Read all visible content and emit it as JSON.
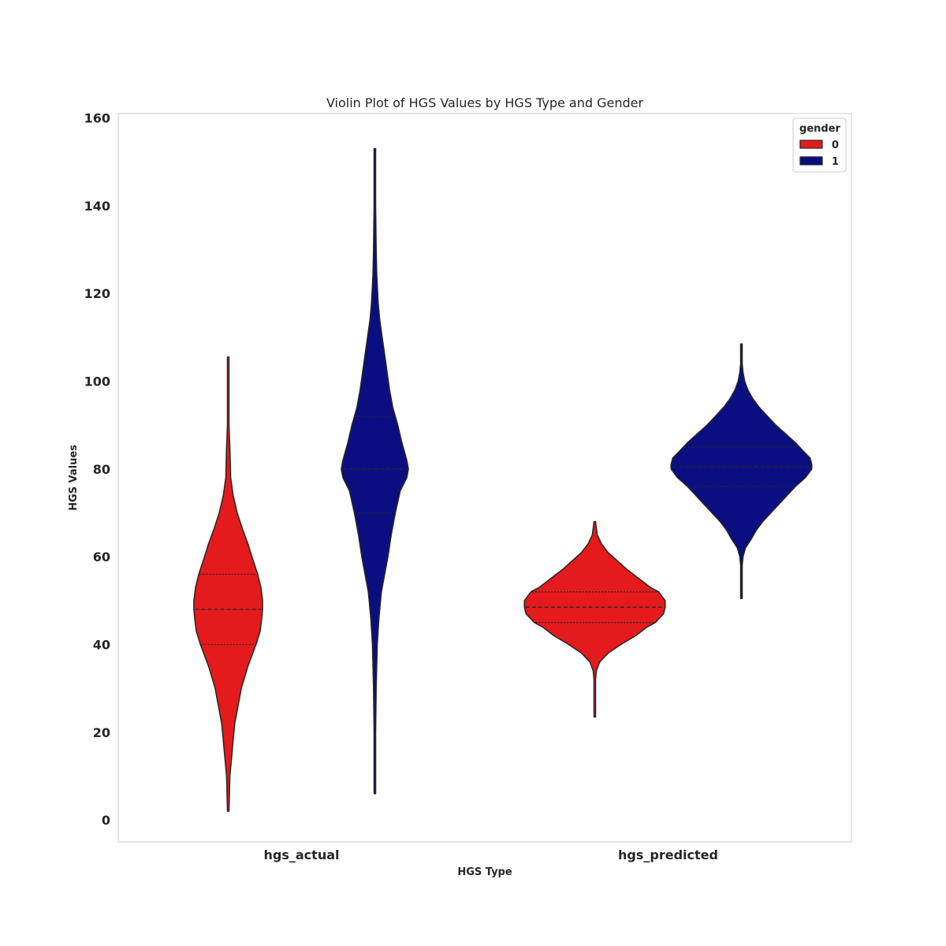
{
  "chart_data": {
    "type": "violin",
    "title": "Violin Plot of HGS Values by HGS Type and Gender",
    "xlabel": "HGS Type",
    "ylabel": "HGS Values",
    "categories": [
      "hgs_actual",
      "hgs_predicted"
    ],
    "ylim": [
      -5,
      161
    ],
    "yticks": [
      "0",
      "20",
      "40",
      "60",
      "80",
      "100",
      "120",
      "140",
      "160"
    ],
    "grid": false,
    "legend": {
      "title": "gender",
      "placement": "top-right"
    },
    "series": [
      {
        "name": "0",
        "color": "#e41a1c"
      },
      {
        "name": "1",
        "color": "#0b0e80"
      }
    ],
    "violins": [
      {
        "category": "hgs_actual",
        "series": "0",
        "min": 2,
        "max": 105.5,
        "q1": 40,
        "median": 48,
        "q3": 56,
        "profile": [
          [
            2,
            0.5
          ],
          [
            10,
            1
          ],
          [
            14,
            2
          ],
          [
            18,
            3
          ],
          [
            22,
            4
          ],
          [
            26,
            6
          ],
          [
            30,
            8
          ],
          [
            35,
            12
          ],
          [
            40,
            17
          ],
          [
            43,
            19.5
          ],
          [
            46,
            20.5
          ],
          [
            48,
            21
          ],
          [
            50,
            21
          ],
          [
            53,
            20
          ],
          [
            56,
            18
          ],
          [
            60,
            14.5
          ],
          [
            63,
            12
          ],
          [
            66,
            9
          ],
          [
            70,
            5.5
          ],
          [
            74,
            3
          ],
          [
            78,
            1.5
          ],
          [
            85,
            1
          ],
          [
            90,
            0.5
          ],
          [
            105.5,
            0.5
          ]
        ]
      },
      {
        "category": "hgs_actual",
        "series": "1",
        "min": 6,
        "max": 153,
        "q1": 70,
        "median": 80,
        "q3": 92,
        "profile": [
          [
            6,
            0.5
          ],
          [
            20,
            0.5
          ],
          [
            30,
            0.8
          ],
          [
            40,
            1.5
          ],
          [
            46,
            2.5
          ],
          [
            52,
            4
          ],
          [
            56,
            6
          ],
          [
            60,
            8
          ],
          [
            65,
            10
          ],
          [
            70,
            12.5
          ],
          [
            75,
            15.5
          ],
          [
            78,
            19.5
          ],
          [
            80,
            20.5
          ],
          [
            82,
            19.5
          ],
          [
            86,
            16.5
          ],
          [
            90,
            14
          ],
          [
            94,
            11
          ],
          [
            98,
            9
          ],
          [
            102,
            7.5
          ],
          [
            106,
            6
          ],
          [
            110,
            4.5
          ],
          [
            114,
            3
          ],
          [
            118,
            2
          ],
          [
            124,
            1.2
          ],
          [
            130,
            0.8
          ],
          [
            140,
            0.5
          ],
          [
            153,
            0.5
          ]
        ]
      },
      {
        "category": "hgs_predicted",
        "series": "0",
        "min": 23.5,
        "max": 68,
        "q1": 45,
        "median": 48.5,
        "q3": 52,
        "profile": [
          [
            23.5,
            0.5
          ],
          [
            32,
            0.5
          ],
          [
            34,
            1
          ],
          [
            36,
            3
          ],
          [
            38,
            8
          ],
          [
            40,
            16
          ],
          [
            42,
            25
          ],
          [
            44,
            32
          ],
          [
            45,
            37
          ],
          [
            47,
            42
          ],
          [
            48.5,
            43
          ],
          [
            50,
            43
          ],
          [
            52,
            39
          ],
          [
            53,
            34
          ],
          [
            55,
            27
          ],
          [
            57,
            20
          ],
          [
            59,
            14
          ],
          [
            61,
            8
          ],
          [
            63,
            4
          ],
          [
            65,
            1.5
          ],
          [
            68,
            0.5
          ]
        ]
      },
      {
        "category": "hgs_predicted",
        "series": "1",
        "min": 50.5,
        "max": 108.5,
        "q1": 76,
        "median": 80.5,
        "q3": 85,
        "profile": [
          [
            50.5,
            0.5
          ],
          [
            58,
            0.5
          ],
          [
            60,
            1
          ],
          [
            62,
            2.5
          ],
          [
            64,
            6
          ],
          [
            66,
            9
          ],
          [
            68,
            13
          ],
          [
            70,
            18
          ],
          [
            72,
            23
          ],
          [
            74,
            28
          ],
          [
            76,
            33
          ],
          [
            78,
            39
          ],
          [
            80,
            43
          ],
          [
            81,
            43
          ],
          [
            82.5,
            42
          ],
          [
            84,
            38
          ],
          [
            86,
            33
          ],
          [
            88,
            27
          ],
          [
            90,
            21
          ],
          [
            92,
            16
          ],
          [
            94,
            11
          ],
          [
            96,
            7
          ],
          [
            98,
            4
          ],
          [
            100,
            2
          ],
          [
            102,
            1
          ],
          [
            104,
            0.5
          ],
          [
            108.5,
            0.5
          ]
        ]
      }
    ]
  }
}
